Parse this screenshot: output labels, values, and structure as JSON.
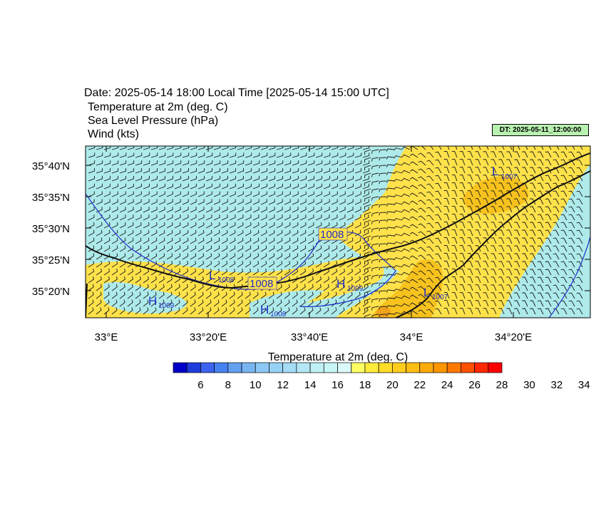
{
  "header": {
    "title": "Date: 2025-05-14  18:00 Local Time [2025-05-14  15:00 UTC]",
    "fields": [
      "Temperature at 2m   (deg. C)",
      "Sea Level Pressure   (hPa)",
      "Wind   (kts)"
    ],
    "dt_badge": "DT: 2025-05-11_12:00:00"
  },
  "map": {
    "lat_labels": [
      "35°40'N",
      "35°35'N",
      "35°30'N",
      "35°25'N",
      "35°20'N"
    ],
    "lon_labels": [
      "33°E",
      "33°20'E",
      "33°40'E",
      "34°E",
      "34°20'E"
    ],
    "pressure_labels": [
      "L",
      "1007",
      "1008",
      "L",
      "1008",
      "1008",
      "H",
      "1009",
      "H",
      "1009",
      "H",
      "1008",
      "L",
      "1007"
    ],
    "colors": {
      "cool": "#aeeaea",
      "warm": "#ffe14a",
      "hot": "#f7c21e",
      "isobar": "#1e2dc8",
      "coast": "#111111"
    }
  },
  "colorbar": {
    "title": "Temperature at 2m  (deg. C)",
    "labels": [
      "6",
      "8",
      "10",
      "12",
      "14",
      "16",
      "18",
      "20",
      "22",
      "24",
      "26",
      "28",
      "30",
      "32",
      "34"
    ],
    "colors": [
      "#0000c8",
      "#1e3cdc",
      "#3c64f0",
      "#4682f0",
      "#64a0f0",
      "#78b4f0",
      "#8cc8f5",
      "#96d2f5",
      "#a5dcf5",
      "#b4e6f5",
      "#bef0f5",
      "#c8f5f5",
      "#dcfafa",
      "#ffff64",
      "#ffeb3c",
      "#ffdc28",
      "#ffcd1e",
      "#ffbe14",
      "#ffaa0a",
      "#ff9600",
      "#ff7800",
      "#ff5000",
      "#ff2800",
      "#ff0000"
    ]
  }
}
